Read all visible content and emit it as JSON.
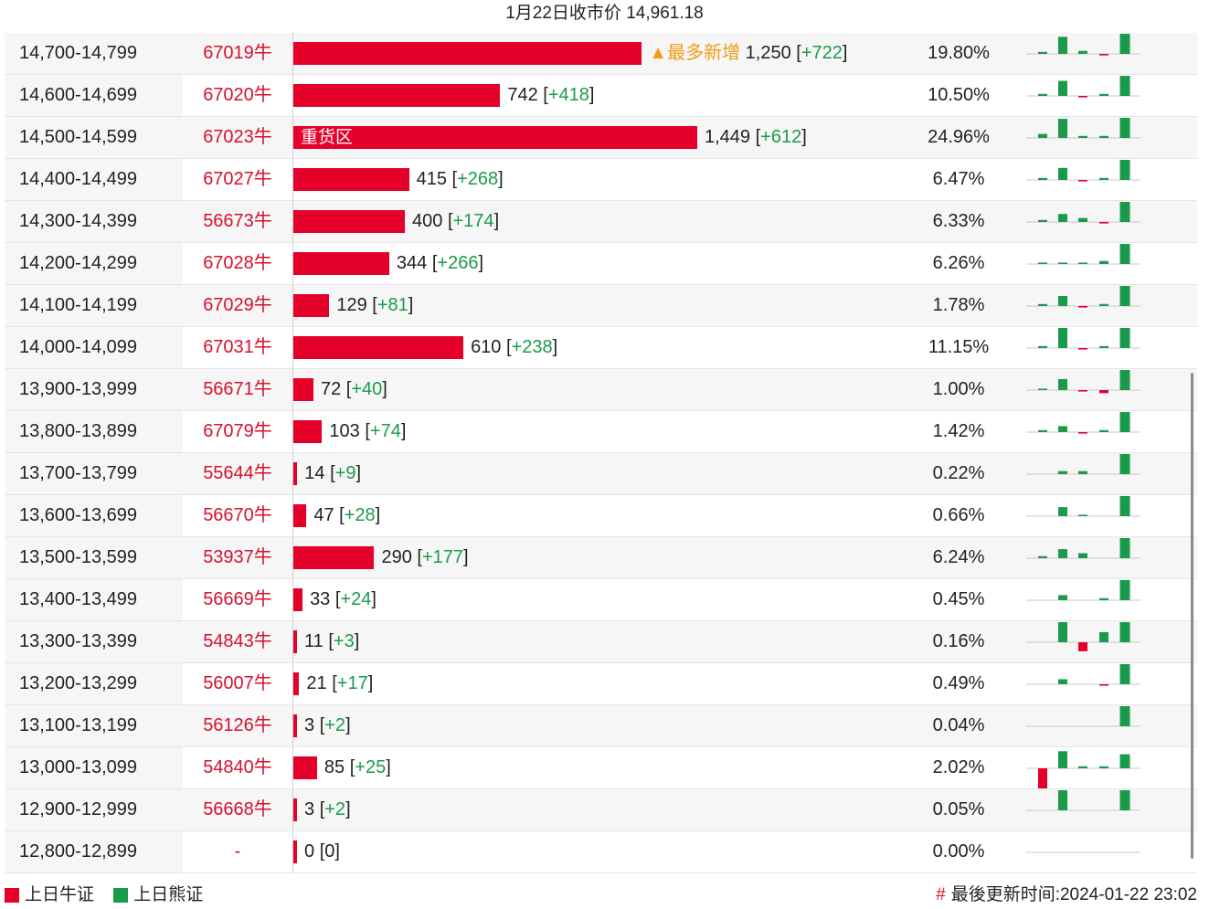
{
  "title": "1月22日收市价 14,961.18",
  "colors": {
    "bull": "#e5002a",
    "bear": "#1a9a4b",
    "tag": "#f29b16",
    "code": "#d6112e"
  },
  "chart_data": {
    "type": "bar",
    "title": "1月22日收市价 14,961.18",
    "xlim": [
      0,
      1500
    ],
    "series_names_from_legend": [
      "上日牛证",
      "上日熊证"
    ],
    "rows": [
      {
        "range": "14,700-14,799",
        "code": "67019牛",
        "value": 1250,
        "value_text": "1,250",
        "change": "+722",
        "pct": "19.80%",
        "tag": "▲最多新增",
        "inside_label": "",
        "spark": [
          0.1,
          0.85,
          0.15,
          -0.05,
          1.0
        ]
      },
      {
        "range": "14,600-14,699",
        "code": "67020牛",
        "value": 742,
        "value_text": "742",
        "change": "+418",
        "pct": "10.50%",
        "tag": "",
        "inside_label": "",
        "spark": [
          0.1,
          0.75,
          -0.05,
          0.1,
          1.0
        ]
      },
      {
        "range": "14,500-14,599",
        "code": "67023牛",
        "value": 1449,
        "value_text": "1,449",
        "change": "+612",
        "pct": "24.96%",
        "tag": "",
        "inside_label": "重货区",
        "spark": [
          0.2,
          0.95,
          0.1,
          0.1,
          1.0
        ]
      },
      {
        "range": "14,400-14,499",
        "code": "67027牛",
        "value": 415,
        "value_text": "415",
        "change": "+268",
        "pct": "6.47%",
        "tag": "",
        "inside_label": "",
        "spark": [
          0.1,
          0.6,
          -0.05,
          0.1,
          1.0
        ]
      },
      {
        "range": "14,300-14,399",
        "code": "56673牛",
        "value": 400,
        "value_text": "400",
        "change": "+174",
        "pct": "6.33%",
        "tag": "",
        "inside_label": "",
        "spark": [
          0.1,
          0.4,
          0.2,
          -0.05,
          1.0
        ]
      },
      {
        "range": "14,200-14,299",
        "code": "67028牛",
        "value": 344,
        "value_text": "344",
        "change": "+266",
        "pct": "6.26%",
        "tag": "",
        "inside_label": "",
        "spark": [
          0.05,
          0.05,
          0.05,
          0.15,
          1.0
        ]
      },
      {
        "range": "14,100-14,199",
        "code": "67029牛",
        "value": 129,
        "value_text": "129",
        "change": "+81",
        "pct": "1.78%",
        "tag": "",
        "inside_label": "",
        "spark": [
          0.1,
          0.5,
          -0.05,
          0.1,
          1.0
        ]
      },
      {
        "range": "14,000-14,099",
        "code": "67031牛",
        "value": 610,
        "value_text": "610",
        "change": "+238",
        "pct": "11.15%",
        "tag": "",
        "inside_label": "",
        "spark": [
          0.1,
          1.0,
          -0.05,
          0.1,
          1.0
        ]
      },
      {
        "range": "13,900-13,999",
        "code": "56671牛",
        "value": 72,
        "value_text": "72",
        "change": "+40",
        "pct": "1.00%",
        "tag": "",
        "inside_label": "",
        "spark": [
          0.05,
          0.55,
          -0.05,
          -0.15,
          1.0
        ]
      },
      {
        "range": "13,800-13,899",
        "code": "67079牛",
        "value": 103,
        "value_text": "103",
        "change": "+74",
        "pct": "1.42%",
        "tag": "",
        "inside_label": "",
        "spark": [
          0.1,
          0.3,
          -0.05,
          0.1,
          1.0
        ]
      },
      {
        "range": "13,700-13,799",
        "code": "55644牛",
        "value": 14,
        "value_text": "14",
        "change": "+9",
        "pct": "0.22%",
        "tag": "",
        "inside_label": "",
        "spark": [
          0,
          0.15,
          0.15,
          0,
          1.0
        ]
      },
      {
        "range": "13,600-13,699",
        "code": "56670牛",
        "value": 47,
        "value_text": "47",
        "change": "+28",
        "pct": "0.66%",
        "tag": "",
        "inside_label": "",
        "spark": [
          0,
          0.45,
          0.05,
          0,
          1.0
        ]
      },
      {
        "range": "13,500-13,599",
        "code": "53937牛",
        "value": 290,
        "value_text": "290",
        "change": "+177",
        "pct": "6.24%",
        "tag": "",
        "inside_label": "",
        "spark": [
          0.1,
          0.45,
          0.25,
          0,
          1.0
        ]
      },
      {
        "range": "13,400-13,499",
        "code": "56669牛",
        "value": 33,
        "value_text": "33",
        "change": "+24",
        "pct": "0.45%",
        "tag": "",
        "inside_label": "",
        "spark": [
          0,
          0.25,
          0,
          0.1,
          1.0
        ]
      },
      {
        "range": "13,300-13,399",
        "code": "54843牛",
        "value": 11,
        "value_text": "11",
        "change": "+3",
        "pct": "0.16%",
        "tag": "",
        "inside_label": "",
        "spark": [
          0,
          1.0,
          -0.45,
          0.5,
          1.0
        ]
      },
      {
        "range": "13,200-13,299",
        "code": "56007牛",
        "value": 21,
        "value_text": "21",
        "change": "+17",
        "pct": "0.49%",
        "tag": "",
        "inside_label": "",
        "spark": [
          0,
          0.25,
          0,
          -0.05,
          1.0
        ]
      },
      {
        "range": "13,100-13,199",
        "code": "56126牛",
        "value": 3,
        "value_text": "3",
        "change": "+2",
        "pct": "0.04%",
        "tag": "",
        "inside_label": "",
        "spark": [
          0,
          0,
          0,
          0,
          1.0
        ]
      },
      {
        "range": "13,000-13,099",
        "code": "54840牛",
        "value": 85,
        "value_text": "85",
        "change": "+25",
        "pct": "2.02%",
        "tag": "",
        "inside_label": "",
        "spark": [
          -1.0,
          0.85,
          0.1,
          0.1,
          0.7
        ]
      },
      {
        "range": "12,900-12,999",
        "code": "56668牛",
        "value": 3,
        "value_text": "3",
        "change": "+2",
        "pct": "0.05%",
        "tag": "",
        "inside_label": "",
        "spark": [
          0,
          1.0,
          0,
          0,
          1.0
        ]
      },
      {
        "range": "12,800-12,899",
        "code": "-",
        "value": 0,
        "value_text": "0",
        "change": "0",
        "pct": "0.00%",
        "tag": "",
        "inside_label": "",
        "spark": [
          0,
          0,
          0,
          0,
          0
        ]
      }
    ]
  },
  "legend": {
    "bull": "上日牛证",
    "bear": "上日熊证"
  },
  "footer": {
    "hash": "#",
    "updated_label": "最後更新时间:",
    "updated_value": "2024-01-22 23:02"
  }
}
